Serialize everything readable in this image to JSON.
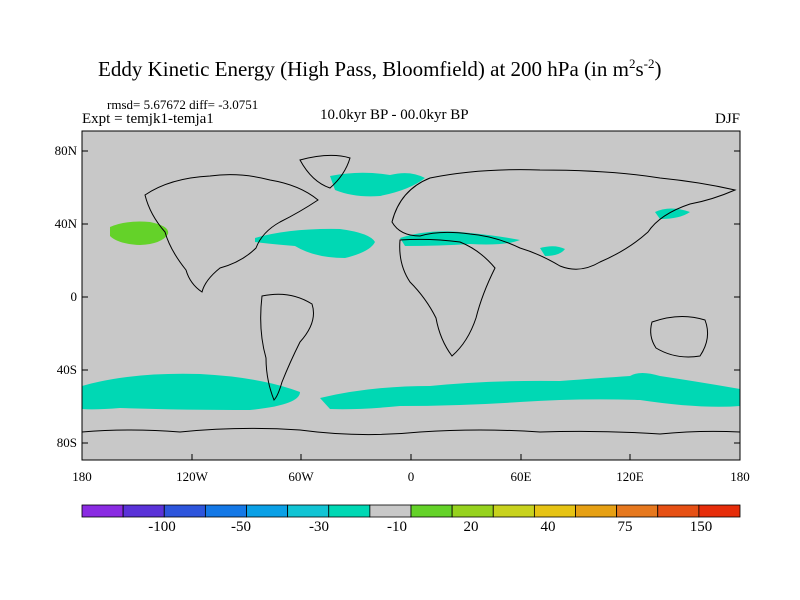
{
  "title": {
    "main": "Eddy Kinetic Energy (High Pass, Bloomfield) at 200 hPa (in m",
    "sup1": "2",
    "mid": "s",
    "sup2": "-2",
    "close": ")"
  },
  "stats": {
    "rmsd_line": "rmsd= 5.67672 diff= -3.0751",
    "experiment": "Expt = temjk1-temja1",
    "period": "10.0kyr BP - 00.0kyr BP",
    "season": "DJF"
  },
  "axes": {
    "y_ticks": [
      "80N",
      "40N",
      "0",
      "40S",
      "80S"
    ],
    "x_ticks": [
      "180",
      "120W",
      "60W",
      "0",
      "60E",
      "120E",
      "180"
    ]
  },
  "colorbar": {
    "colors": [
      "#8a2be2",
      "#5a32d8",
      "#2d55dc",
      "#1478e6",
      "#0aa0e6",
      "#11c4d4",
      "#00d8b4",
      "#c8c8c8",
      "#64d229",
      "#96d21e",
      "#c8d21e",
      "#e6c314",
      "#e6a014",
      "#e6781e",
      "#e65014",
      "#e62d0a"
    ],
    "labels": [
      "-100",
      "-50",
      "-30",
      "-10",
      "20",
      "40",
      "75",
      "150"
    ]
  },
  "fill_colors": {
    "background": "#c8c8c8",
    "negative": "#00d8b4",
    "positive": "#64d229"
  }
}
